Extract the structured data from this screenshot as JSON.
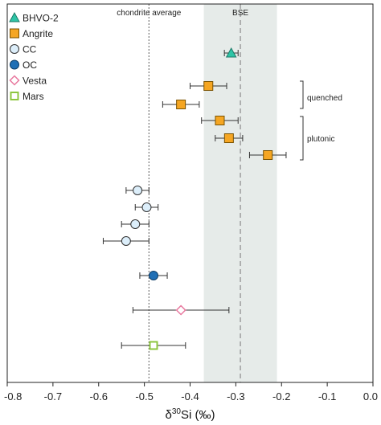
{
  "chart_data": {
    "type": "scatter",
    "xlabel_parts": {
      "delta": "δ",
      "sup": "30",
      "rest": "Si (‰)"
    },
    "xlim": [
      -0.8,
      0.0
    ],
    "xticks": [
      {
        "value": -0.8,
        "label": "-0.8"
      },
      {
        "value": -0.7,
        "label": "-0.7"
      },
      {
        "value": -0.6,
        "label": "-0.6"
      },
      {
        "value": -0.5,
        "label": "-0.5"
      },
      {
        "value": -0.4,
        "label": "-0.4"
      },
      {
        "value": -0.3,
        "label": "-0.3"
      },
      {
        "value": -0.2,
        "label": "-0.2"
      },
      {
        "value": -0.1,
        "label": "-0.1"
      },
      {
        "value": 0.0,
        "label": "0.0"
      }
    ],
    "reference_lines": {
      "chondrite": {
        "label": "chondrite average",
        "x": -0.49
      },
      "bse": {
        "label": "BSE",
        "x": -0.29,
        "band": [
          -0.37,
          -0.21
        ]
      }
    },
    "bracket_labels": {
      "quenched": "quenched",
      "plutonic": "plutonic"
    },
    "legend_position": "top-left",
    "series": [
      {
        "name": "BHVO-2",
        "marker": "triangle",
        "color": "#2ec4a6",
        "edge": "#1c7a68",
        "points": [
          {
            "x": -0.31,
            "err": 0.015
          }
        ]
      },
      {
        "name": "Angrite",
        "marker": "square",
        "color": "#f5a623",
        "edge": "#7a5200",
        "points": [
          {
            "x": -0.36,
            "err": 0.04,
            "group": "quenched"
          },
          {
            "x": -0.42,
            "err": 0.04,
            "group": "quenched"
          },
          {
            "x": -0.335,
            "err": 0.04,
            "group": "plutonic"
          },
          {
            "x": -0.315,
            "err": 0.03,
            "group": "plutonic"
          },
          {
            "x": -0.23,
            "err": 0.04,
            "group": "plutonic"
          }
        ]
      },
      {
        "name": "CC",
        "marker": "circle",
        "color": "#dceefa",
        "edge": "#333333",
        "points": [
          {
            "x": -0.515,
            "err": 0.025
          },
          {
            "x": -0.495,
            "err": 0.025
          },
          {
            "x": -0.52,
            "err": 0.03
          },
          {
            "x": -0.54,
            "err": 0.05
          }
        ]
      },
      {
        "name": "OC",
        "marker": "circle",
        "color": "#1f6fb5",
        "edge": "#0d3d66",
        "points": [
          {
            "x": -0.48,
            "err": 0.03
          }
        ]
      },
      {
        "name": "Vesta",
        "marker": "diamond",
        "color": "#ffffff",
        "edge": "#e8789e",
        "points": [
          {
            "x": -0.42,
            "err": 0.105
          }
        ]
      },
      {
        "name": "Mars",
        "marker": "open-square",
        "color": "#ffffff",
        "edge": "#8dc63f",
        "points": [
          {
            "x": -0.48,
            "err": 0.07
          }
        ]
      }
    ]
  }
}
